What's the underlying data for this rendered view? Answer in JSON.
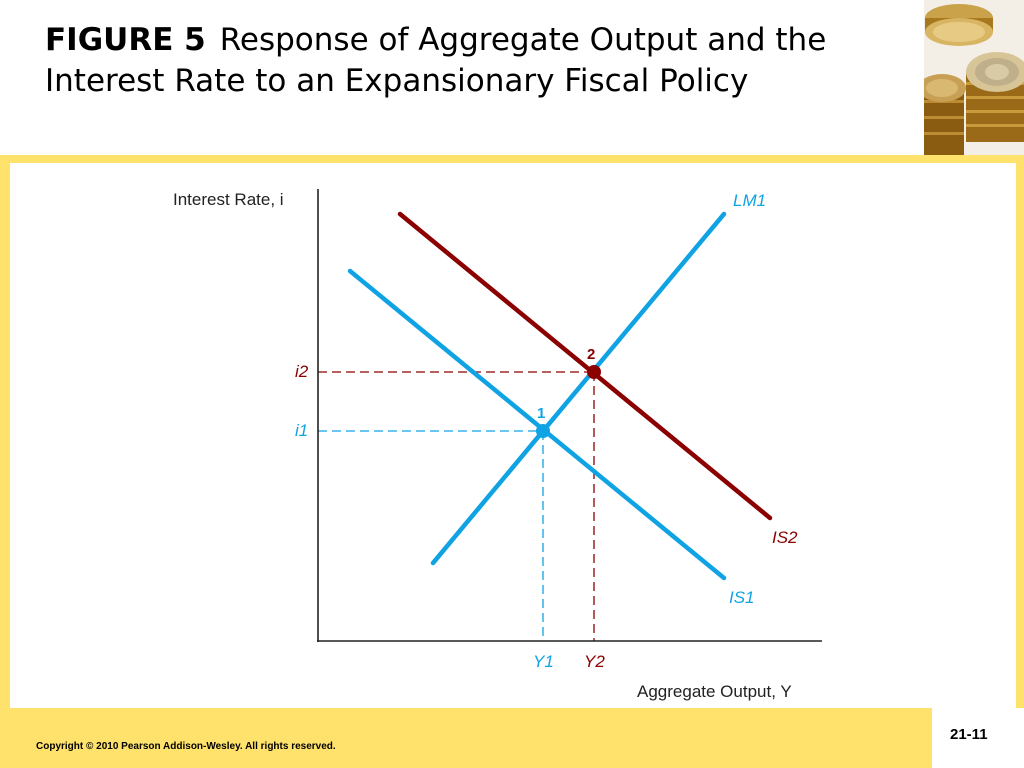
{
  "slide": {
    "figure_label": "FIGURE 5",
    "title": "Response of Aggregate Output and the Interest Rate to an Expansionary Fiscal Policy",
    "copyright": "Copyright © 2010 Pearson Addison-Wesley. All rights reserved.",
    "slide_number": "21-11"
  },
  "colors": {
    "frame": "#ffe26b",
    "blue": "#10a3e3",
    "red": "#8b0000",
    "axis": "#222222"
  },
  "diagram": {
    "y_axis_label": "Interest Rate, i",
    "x_axis_label": "Aggregate Output, Y",
    "curves": {
      "lm1": "LM1",
      "is1": "IS1",
      "is2": "IS2"
    },
    "points": {
      "p1": "1",
      "p2": "2"
    },
    "ticks": {
      "i1": "i1",
      "i2": "i2",
      "y1": "Y1",
      "y2": "Y2"
    }
  },
  "icons": [
    "coins-image"
  ]
}
